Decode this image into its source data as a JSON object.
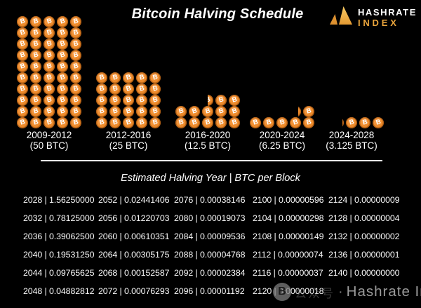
{
  "title": "Bitcoin Halving Schedule",
  "logo": {
    "line1": "HASHRATE",
    "line2": "INDEX"
  },
  "coin_symbol": "B",
  "table_heading": "Estimated Halving Year | BTC per Block",
  "table_separator": "|",
  "watermark": {
    "cjk": "公众号",
    "dot": "·",
    "label": "Hashrate Index"
  },
  "colors": {
    "background": "#000000",
    "coin_orange": "#EE8B2B",
    "coin_rim": "#C96A14",
    "accent_amber": "#E9A43C",
    "text_white": "#FFFFFF",
    "watermark_gray": "#9B9B9B"
  },
  "chart_data": {
    "type": "bar",
    "style": "pictograph",
    "title": "Bitcoin Halving Schedule",
    "unit": "BTC per block",
    "categories": [
      "2009-2012",
      "2012-2016",
      "2016-2020",
      "2020-2024",
      "2024-2028"
    ],
    "values": [
      50,
      25,
      12.5,
      6.25,
      3.125
    ],
    "value_labels": [
      "(50 BTC)",
      "(25 BTC)",
      "(12.5 BTC)",
      "(6.25 BTC)",
      "(3.125 BTC)"
    ],
    "coins_per_row": 5,
    "table": {
      "title": "Estimated Halving Year | BTC per Block",
      "columns": [
        [
          [
            "2028",
            "1.56250000"
          ],
          [
            "2032",
            "0.78125000"
          ],
          [
            "2036",
            "0.39062500"
          ],
          [
            "2040",
            "0.19531250"
          ],
          [
            "2044",
            "0.09765625"
          ],
          [
            "2048",
            "0.04882812"
          ]
        ],
        [
          [
            "2052",
            "0.02441406"
          ],
          [
            "2056",
            "0.01220703"
          ],
          [
            "2060",
            "0.00610351"
          ],
          [
            "2064",
            "0.00305175"
          ],
          [
            "2068",
            "0.00152587"
          ],
          [
            "2072",
            "0.00076293"
          ]
        ],
        [
          [
            "2076",
            "0.00038146"
          ],
          [
            "2080",
            "0.00019073"
          ],
          [
            "2084",
            "0.00009536"
          ],
          [
            "2088",
            "0.00004768"
          ],
          [
            "2092",
            "0.00002384"
          ],
          [
            "2096",
            "0.00001192"
          ]
        ],
        [
          [
            "2100",
            "0.00000596"
          ],
          [
            "2104",
            "0.00000298"
          ],
          [
            "2108",
            "0.00000149"
          ],
          [
            "2112",
            "0.00000074"
          ],
          [
            "2116",
            "0.00000037"
          ],
          [
            "2120",
            "0.00000018"
          ]
        ],
        [
          [
            "2124",
            "0.00000009"
          ],
          [
            "2128",
            "0.00000004"
          ],
          [
            "2132",
            "0.00000002"
          ],
          [
            "2136",
            "0.00000001"
          ],
          [
            "2140",
            "0.00000000"
          ]
        ]
      ]
    }
  }
}
